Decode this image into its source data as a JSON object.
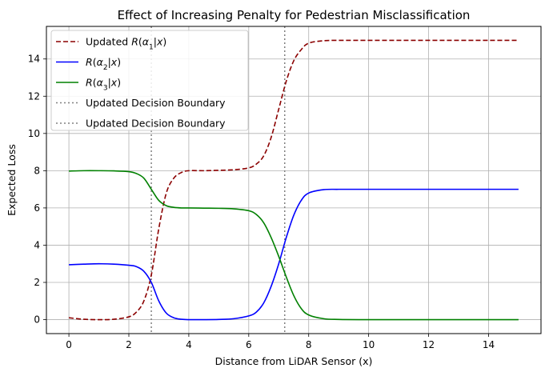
{
  "chart_data": {
    "type": "line",
    "title": "Effect of Increasing Penalty for Pedestrian Misclassification",
    "xlabel": "Distance from LiDAR Sensor (x)",
    "ylabel": "Expected Loss",
    "xlim": [
      -0.75,
      15.75
    ],
    "ylim": [
      -0.75,
      15.75
    ],
    "xticks": [
      0,
      2,
      4,
      6,
      8,
      10,
      12,
      14
    ],
    "yticks": [
      0,
      2,
      4,
      6,
      8,
      10,
      12,
      14
    ],
    "grid": true,
    "legend_position": "top-left",
    "series": [
      {
        "name": "Updated R(α1|x)",
        "legend_label": [
          "Updated ",
          "R",
          "(",
          "α",
          "1",
          "|",
          "x",
          ")"
        ],
        "color": "#8b0000",
        "style": "dashed",
        "x": [
          0,
          0.5,
          1,
          1.5,
          2,
          2.25,
          2.5,
          2.75,
          3,
          3.25,
          3.5,
          3.75,
          4,
          4.5,
          5,
          5.5,
          6,
          6.25,
          6.5,
          6.75,
          7,
          7.25,
          7.5,
          7.75,
          8,
          8.5,
          9,
          10,
          11,
          12,
          13,
          14,
          15
        ],
        "y": [
          0.1,
          0.02,
          0,
          0.02,
          0.15,
          0.4,
          1.0,
          2.4,
          4.9,
          6.8,
          7.6,
          7.9,
          8.0,
          8.0,
          8.02,
          8.05,
          8.15,
          8.35,
          8.8,
          9.8,
          11.3,
          12.8,
          13.9,
          14.5,
          14.85,
          14.98,
          15.0,
          15.0,
          15.0,
          15.0,
          15.0,
          15.0,
          15.0
        ]
      },
      {
        "name": "R(α2|x)",
        "legend_label": [
          "",
          "R",
          "(",
          "α",
          "2",
          "|",
          "x",
          ")"
        ],
        "color": "#0000ff",
        "style": "solid",
        "x": [
          0,
          0.5,
          1,
          1.5,
          2,
          2.25,
          2.5,
          2.75,
          3,
          3.25,
          3.5,
          3.75,
          4,
          4.5,
          5,
          5.5,
          6,
          6.25,
          6.5,
          6.75,
          7,
          7.25,
          7.5,
          7.75,
          8,
          8.5,
          9,
          10,
          11,
          12,
          13,
          14,
          15
        ],
        "y": [
          2.95,
          2.98,
          3.0,
          2.98,
          2.92,
          2.85,
          2.6,
          2.0,
          1.0,
          0.35,
          0.1,
          0.02,
          0,
          0,
          0.01,
          0.05,
          0.2,
          0.4,
          0.9,
          1.8,
          3.0,
          4.4,
          5.6,
          6.4,
          6.8,
          6.98,
          7.0,
          7.0,
          7.0,
          7.0,
          7.0,
          7.0,
          7.0
        ]
      },
      {
        "name": "R(α3|x)",
        "legend_label": [
          "",
          "R",
          "(",
          "α",
          "3",
          "|",
          "x",
          ")"
        ],
        "color": "#008000",
        "style": "solid",
        "x": [
          0,
          0.5,
          1,
          1.5,
          2,
          2.25,
          2.5,
          2.75,
          3,
          3.25,
          3.5,
          3.75,
          4,
          4.5,
          5,
          5.5,
          6,
          6.25,
          6.5,
          6.75,
          7,
          7.25,
          7.5,
          7.75,
          8,
          8.5,
          9,
          10,
          11,
          12,
          13,
          14,
          15
        ],
        "y": [
          7.98,
          8.0,
          8.0,
          7.99,
          7.95,
          7.85,
          7.6,
          7.0,
          6.4,
          6.12,
          6.03,
          6.0,
          6.0,
          5.99,
          5.98,
          5.95,
          5.85,
          5.65,
          5.2,
          4.4,
          3.4,
          2.3,
          1.3,
          0.6,
          0.25,
          0.05,
          0.01,
          0,
          0,
          0,
          0,
          0,
          0
        ]
      }
    ],
    "vertical_lines": [
      {
        "name": "Updated Decision Boundary",
        "x": 2.75,
        "color": "#808080",
        "style": "dotted"
      },
      {
        "name": "Updated Decision Boundary",
        "x": 7.2,
        "color": "#808080",
        "style": "dotted"
      }
    ]
  }
}
